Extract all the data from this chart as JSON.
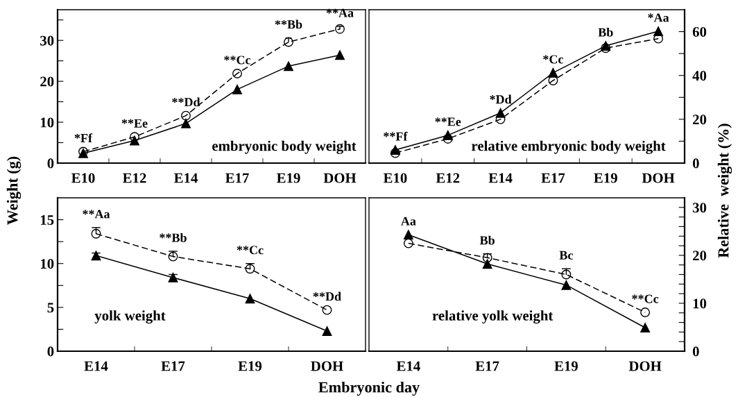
{
  "chart_data": [
    {
      "type": "line",
      "ylabel": "Weight (g)",
      "categories": [
        "E10",
        "E12",
        "E14",
        "E17",
        "E19",
        "DOH"
      ],
      "ylim": [
        0,
        37.5
      ],
      "yticks": [
        0,
        {
          "value": 5,
          "label": null
        },
        10,
        {
          "value": 15,
          "label": null
        },
        20,
        {
          "value": 25,
          "label": null
        },
        30,
        {
          "value": 35,
          "label": null
        }
      ],
      "series": [
        {
          "color": "#000000",
          "marker": "triangle",
          "line_style": "solid",
          "values": [
            2.4,
            5.5,
            9.7,
            18,
            23.7,
            26.4
          ]
        },
        {
          "color": "#000000",
          "marker": "circle",
          "line_style": "dashed",
          "values": [
            2.8,
            6.4,
            11.6,
            21.9,
            29.6,
            32.8
          ],
          "errors": [
            null,
            null,
            null,
            null,
            [
              29.6,
              30.6
            ],
            [
              32.8,
              33.4
            ]
          ]
        }
      ],
      "annotations": [
        "embryonic body weight",
        {
          "text": "*Ff",
          "x": "E10",
          "y": 2.8
        },
        {
          "text": "**Ee",
          "x": "E12",
          "y": 6.4
        },
        {
          "text": "**Dd",
          "x": "E14",
          "y": 11.6
        },
        {
          "text": "**Cc",
          "x": "E17",
          "y": 21.9
        },
        {
          "text": "**Bb",
          "x": "E19",
          "y": 30.6
        },
        {
          "text": "**Aa",
          "x": "DOH",
          "y": 33.4
        }
      ]
    },
    {
      "type": "line",
      "ylabel": "Relative  weight (%)",
      "categories": [
        "E10",
        "E12",
        "E14",
        "E17",
        "E19",
        "DOH"
      ],
      "ylim": [
        0,
        70
      ],
      "yticks": [
        0,
        {
          "value": 10,
          "label": null
        },
        20,
        {
          "value": 30,
          "label": null
        },
        40,
        {
          "value": 50,
          "label": null
        },
        60
      ],
      "series": [
        {
          "color": "#000000",
          "marker": "triangle",
          "line_style": "solid",
          "values": [
            6.0,
            12.7,
            22.9,
            41.2,
            53.5,
            60.2
          ]
        },
        {
          "color": "#000000",
          "marker": "circle",
          "line_style": "dashed",
          "values": [
            4.6,
            11.1,
            20,
            37.7,
            52.5,
            56.8
          ]
        }
      ],
      "annotations": [
        "relative embryonic body weight",
        {
          "text": "**Ff",
          "x": "E10",
          "y": 6.0
        },
        {
          "text": "**Ee",
          "x": "E12",
          "y": 12.7
        },
        {
          "text": "*Dd",
          "x": "E14",
          "y": 22.9
        },
        {
          "text": "*Cc",
          "x": "E17",
          "y": 41.2
        },
        {
          "text": "Bb",
          "x": "E19",
          "y": 53.5
        },
        {
          "text": "*Aa",
          "x": "DOH",
          "y": 60.2
        }
      ]
    },
    {
      "type": "line",
      "xlabel": "Embryonic day",
      "categories": [
        "E14",
        "E17",
        "E19",
        "DOH"
      ],
      "ylim": [
        0,
        17.5
      ],
      "yticks": [
        0,
        {
          "value": 2.5,
          "label": null
        },
        5,
        {
          "value": 7.5,
          "label": null
        },
        10,
        {
          "value": 12.5,
          "label": null
        },
        15
      ],
      "series": [
        {
          "color": "#000000",
          "marker": "triangle",
          "line_style": "solid",
          "values": [
            10.9,
            8.4,
            6.0,
            2.3
          ],
          "errors": [
            [
              10.9,
              11.2
            ],
            [
              8.4,
              8.75
            ],
            null,
            null
          ]
        },
        {
          "color": "#000000",
          "marker": "circle",
          "line_style": "dashed",
          "values": [
            13.4,
            10.8,
            9.4,
            4.7
          ],
          "errors": [
            [
              13.4,
              14.1
            ],
            [
              10.8,
              11.4
            ],
            [
              9.4,
              10.0
            ],
            null
          ]
        }
      ],
      "annotations": [
        "yolk weight",
        {
          "text": "**Aa",
          "x": "E14",
          "y": 14.1
        },
        {
          "text": "**Bb",
          "x": "E17",
          "y": 11.4
        },
        {
          "text": "**Cc",
          "x": "E19",
          "y": 10.0
        },
        {
          "text": "**Dd",
          "x": "DOH",
          "y": 4.7
        }
      ]
    },
    {
      "type": "line",
      "categories": [
        "E14",
        "E17",
        "E19",
        "DOH"
      ],
      "ylim": [
        0,
        32
      ],
      "yticks": [
        0,
        {
          "value": 2,
          "label": null
        },
        {
          "value": 4,
          "label": null
        },
        {
          "value": 6,
          "label": null
        },
        {
          "value": 8,
          "label": null
        },
        10,
        {
          "value": 12,
          "label": null
        },
        {
          "value": 14,
          "label": null
        },
        {
          "value": 16,
          "label": null
        },
        {
          "value": 18,
          "label": null
        },
        20,
        {
          "value": 22,
          "label": null
        },
        {
          "value": 24,
          "label": null
        },
        {
          "value": 26,
          "label": null
        },
        {
          "value": 28,
          "label": null
        },
        30
      ],
      "series": [
        {
          "color": "#000000",
          "marker": "triangle",
          "line_style": "solid",
          "values": [
            24.3,
            18.2,
            13.8,
            4.9
          ]
        },
        {
          "color": "#000000",
          "marker": "circle",
          "line_style": "dashed",
          "values": [
            22.5,
            19.5,
            16.0,
            8.1
          ],
          "errors": [
            null,
            [
              19.5,
              20.3
            ],
            [
              16.0,
              17.2
            ],
            null
          ]
        }
      ],
      "annotations": [
        "relative yolk weight",
        {
          "text": "Aa",
          "x": "E14",
          "y": 24.3
        },
        {
          "text": "Bb",
          "x": "E17",
          "y": 20.3
        },
        {
          "text": "Bc",
          "x": "E19",
          "y": 17.2
        },
        {
          "text": "**Cc",
          "x": "DOH",
          "y": 8.1
        }
      ]
    }
  ]
}
